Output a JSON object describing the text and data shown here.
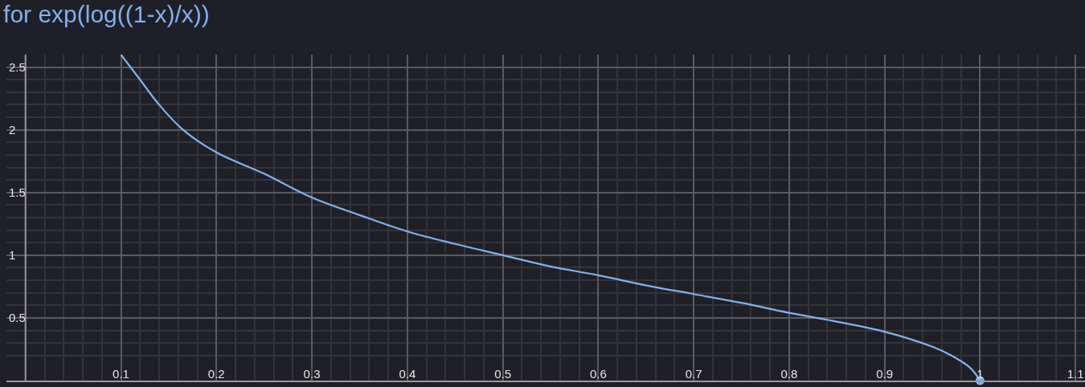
{
  "chart_data": {
    "type": "line",
    "title": "for exp(log((1-x)/x))",
    "series": [
      {
        "color": "#7fb2f0",
        "x": [
          0.1,
          0.12,
          0.14,
          0.165,
          0.2,
          0.25,
          0.3,
          0.35,
          0.4,
          0.45,
          0.5,
          0.55,
          0.6,
          0.65,
          0.7,
          0.75,
          0.8,
          0.85,
          0.9,
          0.95,
          0.97,
          0.99,
          1.0
        ],
        "values": [
          2.6,
          2.4,
          2.2,
          2.0,
          1.82,
          1.65,
          1.46,
          1.32,
          1.19,
          1.09,
          1.0,
          0.91,
          0.84,
          0.76,
          0.69,
          0.62,
          0.54,
          0.47,
          0.39,
          0.27,
          0.2,
          0.1,
          0.0
        ]
      },
      {
        "type": "scatter",
        "color": "#7fb2f0",
        "marker": "circle",
        "x": [
          1.0
        ],
        "values": [
          0.0
        ]
      }
    ],
    "marker": "none",
    "line_style": "solid",
    "grid": true,
    "xlim": [
      -0.02,
      1.11
    ],
    "ylim": [
      0,
      2.6
    ],
    "xticks": [
      0.1,
      0.2,
      0.3,
      0.4,
      0.5,
      0.6,
      0.7,
      0.8,
      0.9,
      1,
      1.1
    ],
    "yticks": [
      0.5,
      1,
      1.5,
      2,
      2.5
    ]
  }
}
